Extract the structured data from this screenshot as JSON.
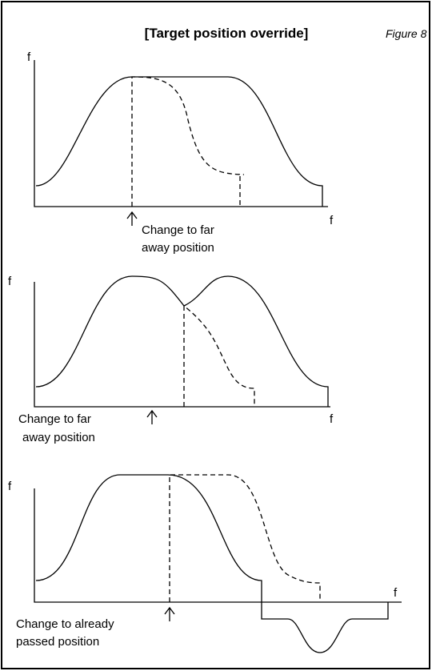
{
  "header": {
    "title": "[Target position override]",
    "figure": "Figure 8"
  },
  "panels": [
    {
      "y_axis": "f",
      "x_axis": "f",
      "annotation": [
        "Change to far",
        "away position"
      ]
    },
    {
      "y_axis": "f",
      "x_axis": "f",
      "annotation": [
        "Change to far",
        "away position"
      ]
    },
    {
      "y_axis": "f",
      "x_axis": "f",
      "annotation": [
        "Change to already",
        "passed position"
      ]
    }
  ]
}
